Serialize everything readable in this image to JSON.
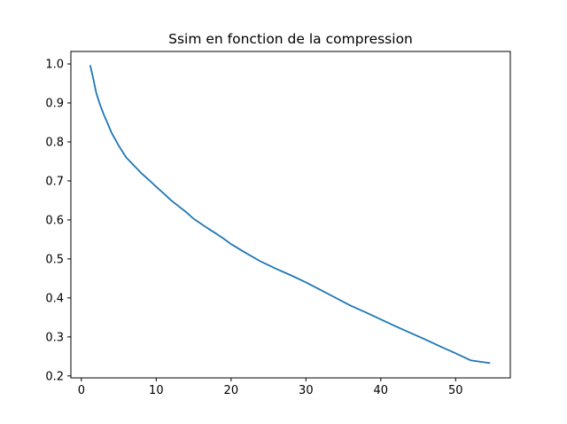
{
  "chart_data": {
    "type": "line",
    "title": "Ssim en fonction de la compression",
    "xlabel": "",
    "ylabel": "",
    "xlim": [
      -1.4,
      57.3
    ],
    "ylim": [
      0.195,
      1.032
    ],
    "xticks": [
      0,
      10,
      20,
      30,
      40,
      50
    ],
    "yticks": [
      0.2,
      0.3,
      0.4,
      0.5,
      0.6,
      0.7,
      0.8,
      0.9,
      1.0
    ],
    "xtick_labels": [
      "0",
      "10",
      "20",
      "30",
      "40",
      "50"
    ],
    "ytick_labels": [
      "0.2",
      "0.3",
      "0.4",
      "0.5",
      "0.6",
      "0.7",
      "0.8",
      "0.9",
      "1.0"
    ],
    "grid": false,
    "series": [
      {
        "color": "#1f77b4",
        "x": [
          1.2,
          1.5,
          2.0,
          2.5,
          3.0,
          3.5,
          4.0,
          5.0,
          6.0,
          7.0,
          8.0,
          9.0,
          10.0,
          11.0,
          12.0,
          13.0,
          14.0,
          15.0,
          16.0,
          17.0,
          18.0,
          19.0,
          20.0,
          22.0,
          24.0,
          26.0,
          28.0,
          30.0,
          32.0,
          34.0,
          36.0,
          38.0,
          40.0,
          42.0,
          44.0,
          46.0,
          48.0,
          50.0,
          52.0,
          54.5
        ],
        "y": [
          0.995,
          0.97,
          0.925,
          0.895,
          0.87,
          0.848,
          0.825,
          0.79,
          0.76,
          0.74,
          0.72,
          0.703,
          0.685,
          0.668,
          0.65,
          0.635,
          0.62,
          0.603,
          0.59,
          0.577,
          0.565,
          0.552,
          0.538,
          0.515,
          0.493,
          0.475,
          0.458,
          0.44,
          0.42,
          0.4,
          0.38,
          0.363,
          0.345,
          0.327,
          0.31,
          0.293,
          0.275,
          0.258,
          0.24,
          0.233
        ]
      }
    ]
  }
}
